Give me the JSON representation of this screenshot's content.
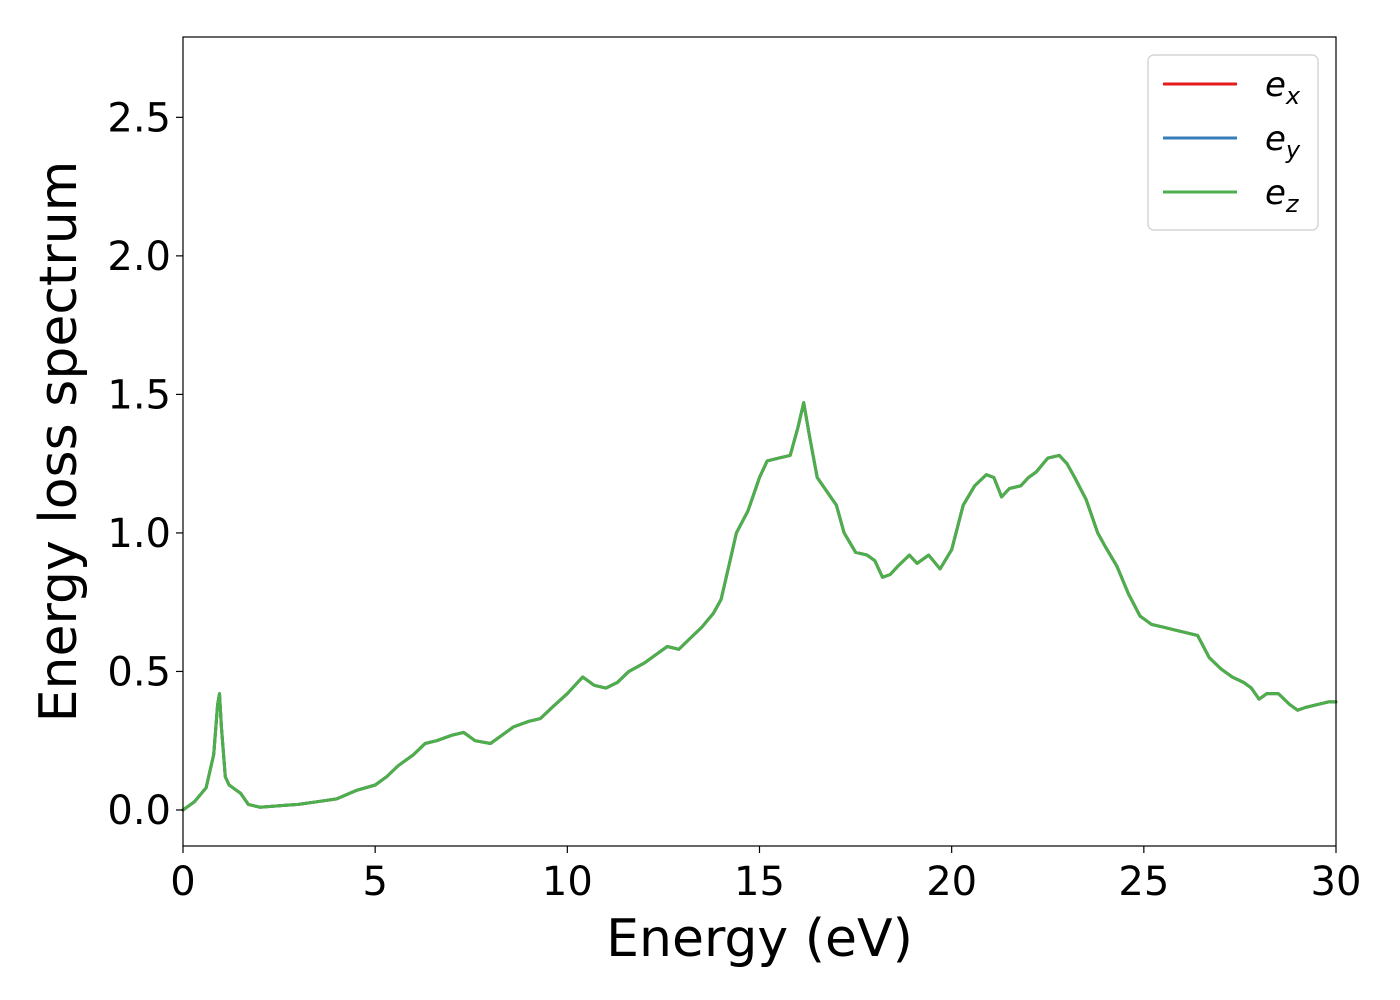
{
  "chart_data": {
    "type": "line",
    "title": "",
    "xlabel": "Energy (eV)",
    "ylabel": "Energy loss spectrum",
    "xlim": [
      0,
      30
    ],
    "ylim": [
      -0.13,
      2.79
    ],
    "grid": false,
    "legend_position": "top-right",
    "x_ticks": [
      0,
      5,
      10,
      15,
      20,
      25,
      30
    ],
    "x_tick_labels": [
      "0",
      "5",
      "10",
      "15",
      "20",
      "25",
      "30"
    ],
    "y_ticks": [
      0.0,
      0.5,
      1.0,
      1.5,
      2.0,
      2.5
    ],
    "y_tick_labels": [
      "0.0",
      "0.5",
      "1.0",
      "1.5",
      "2.0",
      "2.5"
    ],
    "x": [
      0,
      0.3,
      0.6,
      0.8,
      0.9,
      0.95,
      1.0,
      1.1,
      1.2,
      1.3,
      1.5,
      1.7,
      2.0,
      2.5,
      3.0,
      3.5,
      4.0,
      4.5,
      5.0,
      5.3,
      5.6,
      6.0,
      6.3,
      6.6,
      7.0,
      7.3,
      7.6,
      8.0,
      8.3,
      8.6,
      9.0,
      9.3,
      9.6,
      10.0,
      10.4,
      10.7,
      11.0,
      11.3,
      11.6,
      12.0,
      12.3,
      12.6,
      12.9,
      13.2,
      13.5,
      13.8,
      14.0,
      14.2,
      14.4,
      14.7,
      15.0,
      15.2,
      15.5,
      15.8,
      16.0,
      16.15,
      16.3,
      16.5,
      16.8,
      17.0,
      17.2,
      17.5,
      17.8,
      18.0,
      18.2,
      18.4,
      18.6,
      18.9,
      19.1,
      19.4,
      19.7,
      20.0,
      20.3,
      20.6,
      20.9,
      21.1,
      21.3,
      21.5,
      21.8,
      22.0,
      22.2,
      22.5,
      22.8,
      23.0,
      23.2,
      23.5,
      23.8,
      24.0,
      24.3,
      24.6,
      24.9,
      25.2,
      25.5,
      25.8,
      26.1,
      26.4,
      26.7,
      27.0,
      27.3,
      27.6,
      27.8,
      28.0,
      28.2,
      28.5,
      28.8,
      29.0,
      29.2,
      29.5,
      29.8,
      30.0
    ],
    "series": [
      {
        "name": "e_x",
        "color": "#e41a1c",
        "y": [
          0.0,
          0.03,
          0.08,
          0.2,
          0.38,
          0.42,
          0.3,
          0.12,
          0.09,
          0.08,
          0.06,
          0.02,
          0.01,
          0.015,
          0.02,
          0.03,
          0.04,
          0.07,
          0.09,
          0.12,
          0.16,
          0.2,
          0.24,
          0.25,
          0.27,
          0.28,
          0.25,
          0.24,
          0.27,
          0.3,
          0.32,
          0.33,
          0.37,
          0.42,
          0.48,
          0.45,
          0.44,
          0.46,
          0.5,
          0.53,
          0.56,
          0.59,
          0.58,
          0.62,
          0.66,
          0.71,
          0.76,
          0.88,
          1.0,
          1.08,
          1.2,
          1.26,
          1.27,
          1.28,
          1.38,
          1.47,
          1.35,
          1.2,
          1.14,
          1.1,
          1.0,
          0.93,
          0.92,
          0.9,
          0.84,
          0.85,
          0.88,
          0.92,
          0.89,
          0.92,
          0.87,
          0.94,
          1.1,
          1.17,
          1.21,
          1.2,
          1.13,
          1.16,
          1.17,
          1.2,
          1.22,
          1.27,
          1.28,
          1.25,
          1.2,
          1.12,
          1.0,
          0.95,
          0.88,
          0.78,
          0.7,
          0.67,
          0.66,
          0.65,
          0.64,
          0.63,
          0.55,
          0.51,
          0.48,
          0.46,
          0.44,
          0.4,
          0.42,
          0.42,
          0.38,
          0.36,
          0.37,
          0.38,
          0.39,
          0.39
        ]
      },
      {
        "name": "e_y",
        "color": "#377eb8",
        "y": [
          0.0,
          0.03,
          0.08,
          0.2,
          0.38,
          0.42,
          0.3,
          0.12,
          0.09,
          0.08,
          0.06,
          0.02,
          0.01,
          0.015,
          0.02,
          0.03,
          0.04,
          0.07,
          0.09,
          0.12,
          0.16,
          0.2,
          0.24,
          0.25,
          0.27,
          0.28,
          0.25,
          0.24,
          0.27,
          0.3,
          0.32,
          0.33,
          0.37,
          0.42,
          0.48,
          0.45,
          0.44,
          0.46,
          0.5,
          0.53,
          0.56,
          0.59,
          0.58,
          0.62,
          0.66,
          0.71,
          0.76,
          0.88,
          1.0,
          1.08,
          1.2,
          1.26,
          1.27,
          1.28,
          1.38,
          1.47,
          1.35,
          1.2,
          1.14,
          1.1,
          1.0,
          0.93,
          0.92,
          0.9,
          0.84,
          0.85,
          0.88,
          0.92,
          0.89,
          0.92,
          0.87,
          0.94,
          1.1,
          1.17,
          1.21,
          1.2,
          1.13,
          1.16,
          1.17,
          1.2,
          1.22,
          1.27,
          1.28,
          1.25,
          1.2,
          1.12,
          1.0,
          0.95,
          0.88,
          0.78,
          0.7,
          0.67,
          0.66,
          0.65,
          0.64,
          0.63,
          0.55,
          0.51,
          0.48,
          0.46,
          0.44,
          0.4,
          0.42,
          0.42,
          0.38,
          0.36,
          0.37,
          0.38,
          0.39,
          0.39
        ]
      },
      {
        "name": "e_z",
        "color": "#4daf4a",
        "y": [
          0.0,
          0.03,
          0.08,
          0.2,
          0.38,
          0.42,
          0.3,
          0.12,
          0.09,
          0.08,
          0.06,
          0.02,
          0.01,
          0.015,
          0.02,
          0.03,
          0.04,
          0.07,
          0.09,
          0.12,
          0.16,
          0.2,
          0.24,
          0.25,
          0.27,
          0.28,
          0.25,
          0.24,
          0.27,
          0.3,
          0.32,
          0.33,
          0.37,
          0.42,
          0.48,
          0.45,
          0.44,
          0.46,
          0.5,
          0.53,
          0.56,
          0.59,
          0.58,
          0.62,
          0.66,
          0.71,
          0.76,
          0.88,
          1.0,
          1.08,
          1.2,
          1.26,
          1.27,
          1.28,
          1.38,
          1.47,
          1.35,
          1.2,
          1.14,
          1.1,
          1.0,
          0.93,
          0.92,
          0.9,
          0.84,
          0.85,
          0.88,
          0.92,
          0.89,
          0.92,
          0.87,
          0.94,
          1.1,
          1.17,
          1.21,
          1.2,
          1.13,
          1.16,
          1.17,
          1.2,
          1.22,
          1.27,
          1.28,
          1.25,
          1.2,
          1.12,
          1.0,
          0.95,
          0.88,
          0.78,
          0.7,
          0.67,
          0.66,
          0.65,
          0.64,
          0.63,
          0.55,
          0.51,
          0.48,
          0.46,
          0.44,
          0.4,
          0.42,
          0.42,
          0.38,
          0.36,
          0.37,
          0.38,
          0.39,
          0.39
        ]
      }
    ],
    "legend": [
      {
        "symbol": "e",
        "subscript": "x"
      },
      {
        "symbol": "e",
        "subscript": "y"
      },
      {
        "symbol": "e",
        "subscript": "z"
      }
    ]
  }
}
